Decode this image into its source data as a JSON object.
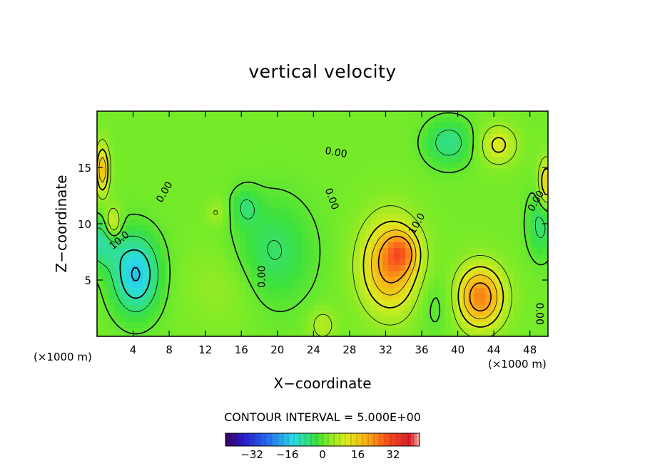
{
  "chart_data": {
    "type": "heatmap",
    "title": "vertical velocity",
    "xlabel": "X−coordinate",
    "ylabel": "Z−coordinate",
    "x_unit": "(×1000 m)",
    "y_unit": "(×1000 m)",
    "xlim": [
      0,
      50
    ],
    "ylim": [
      0,
      20
    ],
    "x_ticks": [
      4,
      8,
      12,
      16,
      20,
      24,
      28,
      32,
      36,
      40,
      44,
      48
    ],
    "y_ticks": [
      5,
      10,
      15
    ],
    "contour_interval_text": "CONTOUR INTERVAL = 5.000E+00",
    "colorbar": {
      "min": -44,
      "max": 44,
      "ticks": [
        -32,
        -16,
        0,
        16,
        32
      ],
      "tick_labels": [
        "−32",
        "−16",
        "0",
        "16",
        "32"
      ]
    },
    "contour_labels": [
      {
        "text": "0.00",
        "x": 7.5,
        "z": 12.8,
        "angle": 60
      },
      {
        "text": "10.0",
        "x": 2.5,
        "z": 8.5,
        "angle": 40
      },
      {
        "text": "0.00",
        "x": 18.3,
        "z": 5.3,
        "angle": 90
      },
      {
        "text": "0.00",
        "x": 26.5,
        "z": 16.3,
        "angle": -10
      },
      {
        "text": "0.00",
        "x": 26.0,
        "z": 12.2,
        "angle": -70
      },
      {
        "text": "10.0",
        "x": 35.5,
        "z": 10.0,
        "angle": 60
      },
      {
        "text": "0.00",
        "x": 48.7,
        "z": 12.0,
        "angle": 60
      },
      {
        "text": "0.00",
        "x": 49.0,
        "z": 2.0,
        "angle": -90
      }
    ],
    "features": [
      {
        "x": 32.5,
        "z": 6.3,
        "value": 21,
        "sx": 2.2,
        "sz": 2.8
      },
      {
        "x": 33.8,
        "z": 7.5,
        "value": 12,
        "sx": 1.2,
        "sz": 1.2
      },
      {
        "x": 42.5,
        "z": 3.5,
        "value": 23,
        "sx": 1.8,
        "sz": 1.9
      },
      {
        "x": 44.5,
        "z": 17.0,
        "value": 10,
        "sx": 1.4,
        "sz": 1.2
      },
      {
        "x": 49.8,
        "z": 13.5,
        "value": 14,
        "sx": 0.6,
        "sz": 1.5
      },
      {
        "x": 0.6,
        "z": 14.8,
        "value": 18,
        "sx": 0.5,
        "sz": 1.5
      },
      {
        "x": 1.8,
        "z": 10.0,
        "value": 12,
        "sx": 0.6,
        "sz": 1.0
      },
      {
        "x": 4.3,
        "z": 5.5,
        "value": -17,
        "sx": 1.8,
        "sz": 2.4
      },
      {
        "x": 0.5,
        "z": 8.3,
        "value": -10,
        "sx": 1.4,
        "sz": 1.5
      },
      {
        "x": 19.5,
        "z": 7.5,
        "value": -7,
        "sx": 3.0,
        "sz": 3.2
      },
      {
        "x": 16.5,
        "z": 11.5,
        "value": -6,
        "sx": 1.0,
        "sz": 1.1
      },
      {
        "x": 39.0,
        "z": 17.2,
        "value": -9,
        "sx": 1.8,
        "sz": 1.4
      },
      {
        "x": 49.2,
        "z": 10.0,
        "value": -8,
        "sx": 1.0,
        "sz": 2.0
      },
      {
        "x": 25.0,
        "z": 1.0,
        "value": 6,
        "sx": 1.0,
        "sz": 1.0
      },
      {
        "x": 13.2,
        "z": 11.0,
        "value": 4,
        "sx": 0.8,
        "sz": 0.8
      },
      {
        "x": 37.5,
        "z": 3.0,
        "value": -3,
        "sx": 1.5,
        "sz": 2.0
      },
      {
        "x": 14.0,
        "z": 4.5,
        "value": 3,
        "sx": 3.0,
        "sz": 2.5
      }
    ]
  }
}
